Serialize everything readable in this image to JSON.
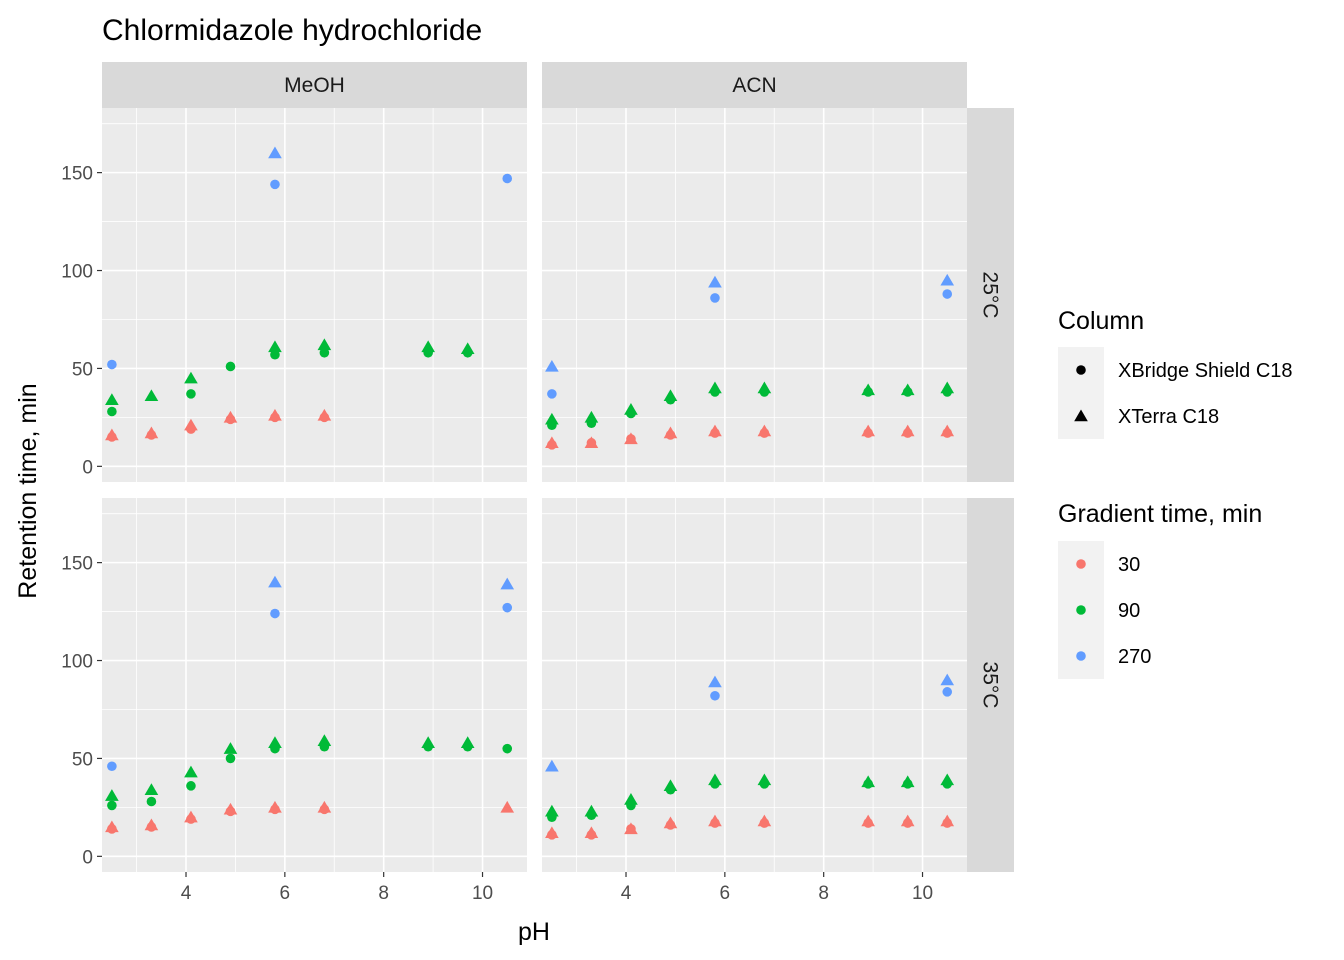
{
  "chart_data": {
    "type": "scatter",
    "title": "Chlormidazole hydrochloride",
    "xlabel": "pH",
    "ylabel": "Retention time, min",
    "xlim": [
      2.3,
      10.9
    ],
    "ylim": [
      -8,
      183
    ],
    "xticks": [
      4,
      6,
      8,
      10
    ],
    "yticks": [
      0,
      50,
      100,
      150
    ],
    "grid": true,
    "facet_cols": [
      "MeOH",
      "ACN"
    ],
    "facet_rows": [
      "25°C",
      "35°C"
    ],
    "shape_legend": {
      "title": "Column",
      "entries": [
        {
          "label": "XBridge Shield C18",
          "shape": "circle"
        },
        {
          "label": "XTerra C18",
          "shape": "triangle"
        }
      ]
    },
    "color_legend": {
      "title": "Gradient time, min",
      "entries": [
        {
          "label": "30",
          "color": "#F8766D"
        },
        {
          "label": "90",
          "color": "#00BA38"
        },
        {
          "label": "270",
          "color": "#619CFF"
        }
      ]
    },
    "legend_position": "right",
    "panels": [
      {
        "row": "25°C",
        "col": "MeOH",
        "series": [
          {
            "column": "XBridge Shield C18",
            "gradient": "30",
            "points": [
              [
                2.5,
                15
              ],
              [
                3.3,
                16
              ],
              [
                4.1,
                19
              ],
              [
                4.9,
                24
              ],
              [
                5.8,
                25
              ],
              [
                6.8,
                25
              ]
            ]
          },
          {
            "column": "XTerra C18",
            "gradient": "30",
            "points": [
              [
                2.5,
                16
              ],
              [
                3.3,
                17
              ],
              [
                4.1,
                21
              ],
              [
                4.9,
                25
              ],
              [
                5.8,
                26
              ],
              [
                6.8,
                26
              ]
            ]
          },
          {
            "column": "XBridge Shield C18",
            "gradient": "90",
            "points": [
              [
                2.5,
                28
              ],
              [
                4.1,
                37
              ],
              [
                4.9,
                51
              ],
              [
                5.8,
                57
              ],
              [
                6.8,
                58
              ],
              [
                8.9,
                58
              ],
              [
                9.7,
                58
              ]
            ]
          },
          {
            "column": "XTerra C18",
            "gradient": "90",
            "points": [
              [
                2.5,
                34
              ],
              [
                3.3,
                36
              ],
              [
                4.1,
                45
              ],
              [
                5.8,
                61
              ],
              [
                6.8,
                62
              ],
              [
                8.9,
                61
              ],
              [
                9.7,
                60
              ]
            ]
          },
          {
            "column": "XBridge Shield C18",
            "gradient": "270",
            "points": [
              [
                2.5,
                52
              ],
              [
                5.8,
                144
              ],
              [
                10.5,
                147
              ]
            ]
          },
          {
            "column": "XTerra C18",
            "gradient": "270",
            "points": [
              [
                5.8,
                160
              ]
            ]
          }
        ]
      },
      {
        "row": "25°C",
        "col": "ACN",
        "series": [
          {
            "column": "XBridge Shield C18",
            "gradient": "30",
            "points": [
              [
                2.5,
                11
              ],
              [
                3.3,
                12
              ],
              [
                4.1,
                14
              ],
              [
                4.9,
                16
              ],
              [
                5.8,
                17
              ],
              [
                6.8,
                17
              ],
              [
                8.9,
                17
              ],
              [
                9.7,
                17
              ],
              [
                10.5,
                17
              ]
            ]
          },
          {
            "column": "XTerra C18",
            "gradient": "30",
            "points": [
              [
                2.5,
                12
              ],
              [
                3.3,
                12
              ],
              [
                4.1,
                14
              ],
              [
                4.9,
                17
              ],
              [
                5.8,
                18
              ],
              [
                6.8,
                18
              ],
              [
                8.9,
                18
              ],
              [
                9.7,
                18
              ],
              [
                10.5,
                18
              ]
            ]
          },
          {
            "column": "XBridge Shield C18",
            "gradient": "90",
            "points": [
              [
                2.5,
                21
              ],
              [
                3.3,
                22
              ],
              [
                4.1,
                27
              ],
              [
                4.9,
                34
              ],
              [
                5.8,
                38
              ],
              [
                6.8,
                38
              ],
              [
                8.9,
                38
              ],
              [
                9.7,
                38
              ],
              [
                10.5,
                38
              ]
            ]
          },
          {
            "column": "XTerra C18",
            "gradient": "90",
            "points": [
              [
                2.5,
                24
              ],
              [
                3.3,
                25
              ],
              [
                4.1,
                29
              ],
              [
                4.9,
                36
              ],
              [
                5.8,
                40
              ],
              [
                6.8,
                40
              ],
              [
                8.9,
                39
              ],
              [
                9.7,
                39
              ],
              [
                10.5,
                40
              ]
            ]
          },
          {
            "column": "XBridge Shield C18",
            "gradient": "270",
            "points": [
              [
                2.5,
                37
              ],
              [
                5.8,
                86
              ],
              [
                10.5,
                88
              ]
            ]
          },
          {
            "column": "XTerra C18",
            "gradient": "270",
            "points": [
              [
                2.5,
                51
              ],
              [
                5.8,
                94
              ],
              [
                10.5,
                95
              ]
            ]
          }
        ]
      },
      {
        "row": "35°C",
        "col": "MeOH",
        "series": [
          {
            "column": "XBridge Shield C18",
            "gradient": "30",
            "points": [
              [
                2.5,
                14
              ],
              [
                3.3,
                15
              ],
              [
                4.1,
                19
              ],
              [
                4.9,
                23
              ],
              [
                5.8,
                24
              ],
              [
                6.8,
                24
              ]
            ]
          },
          {
            "column": "XTerra C18",
            "gradient": "30",
            "points": [
              [
                2.5,
                15
              ],
              [
                3.3,
                16
              ],
              [
                4.1,
                20
              ],
              [
                4.9,
                24
              ],
              [
                5.8,
                25
              ],
              [
                6.8,
                25
              ],
              [
                10.5,
                25
              ]
            ]
          },
          {
            "column": "XBridge Shield C18",
            "gradient": "90",
            "points": [
              [
                2.5,
                26
              ],
              [
                3.3,
                28
              ],
              [
                4.1,
                36
              ],
              [
                4.9,
                50
              ],
              [
                5.8,
                55
              ],
              [
                6.8,
                56
              ],
              [
                8.9,
                56
              ],
              [
                9.7,
                56
              ],
              [
                10.5,
                55
              ]
            ]
          },
          {
            "column": "XTerra C18",
            "gradient": "90",
            "points": [
              [
                2.5,
                31
              ],
              [
                3.3,
                34
              ],
              [
                4.1,
                43
              ],
              [
                4.9,
                55
              ],
              [
                5.8,
                58
              ],
              [
                6.8,
                59
              ],
              [
                8.9,
                58
              ],
              [
                9.7,
                58
              ]
            ]
          },
          {
            "column": "XBridge Shield C18",
            "gradient": "270",
            "points": [
              [
                2.5,
                46
              ],
              [
                5.8,
                124
              ],
              [
                10.5,
                127
              ]
            ]
          },
          {
            "column": "XTerra C18",
            "gradient": "270",
            "points": [
              [
                5.8,
                140
              ],
              [
                10.5,
                139
              ]
            ]
          }
        ]
      },
      {
        "row": "35°C",
        "col": "ACN",
        "series": [
          {
            "column": "XBridge Shield C18",
            "gradient": "30",
            "points": [
              [
                2.5,
                11
              ],
              [
                3.3,
                11
              ],
              [
                4.1,
                14
              ],
              [
                4.9,
                16
              ],
              [
                5.8,
                17
              ],
              [
                6.8,
                17
              ],
              [
                8.9,
                17
              ],
              [
                9.7,
                17
              ],
              [
                10.5,
                17
              ]
            ]
          },
          {
            "column": "XTerra C18",
            "gradient": "30",
            "points": [
              [
                2.5,
                12
              ],
              [
                3.3,
                12
              ],
              [
                4.1,
                14
              ],
              [
                4.9,
                17
              ],
              [
                5.8,
                18
              ],
              [
                6.8,
                18
              ],
              [
                8.9,
                18
              ],
              [
                9.7,
                18
              ],
              [
                10.5,
                18
              ]
            ]
          },
          {
            "column": "XBridge Shield C18",
            "gradient": "90",
            "points": [
              [
                2.5,
                20
              ],
              [
                3.3,
                21
              ],
              [
                4.1,
                26
              ],
              [
                4.9,
                34
              ],
              [
                5.8,
                37
              ],
              [
                6.8,
                37
              ],
              [
                8.9,
                37
              ],
              [
                9.7,
                37
              ],
              [
                10.5,
                37
              ]
            ]
          },
          {
            "column": "XTerra C18",
            "gradient": "90",
            "points": [
              [
                2.5,
                23
              ],
              [
                3.3,
                23
              ],
              [
                4.1,
                29
              ],
              [
                4.9,
                36
              ],
              [
                5.8,
                39
              ],
              [
                6.8,
                39
              ],
              [
                8.9,
                38
              ],
              [
                9.7,
                38
              ],
              [
                10.5,
                39
              ]
            ]
          },
          {
            "column": "XBridge Shield C18",
            "gradient": "270",
            "points": [
              [
                5.8,
                82
              ],
              [
                10.5,
                84
              ]
            ]
          },
          {
            "column": "XTerra C18",
            "gradient": "270",
            "points": [
              [
                2.5,
                46
              ],
              [
                5.8,
                89
              ],
              [
                10.5,
                90
              ]
            ]
          }
        ]
      }
    ]
  }
}
